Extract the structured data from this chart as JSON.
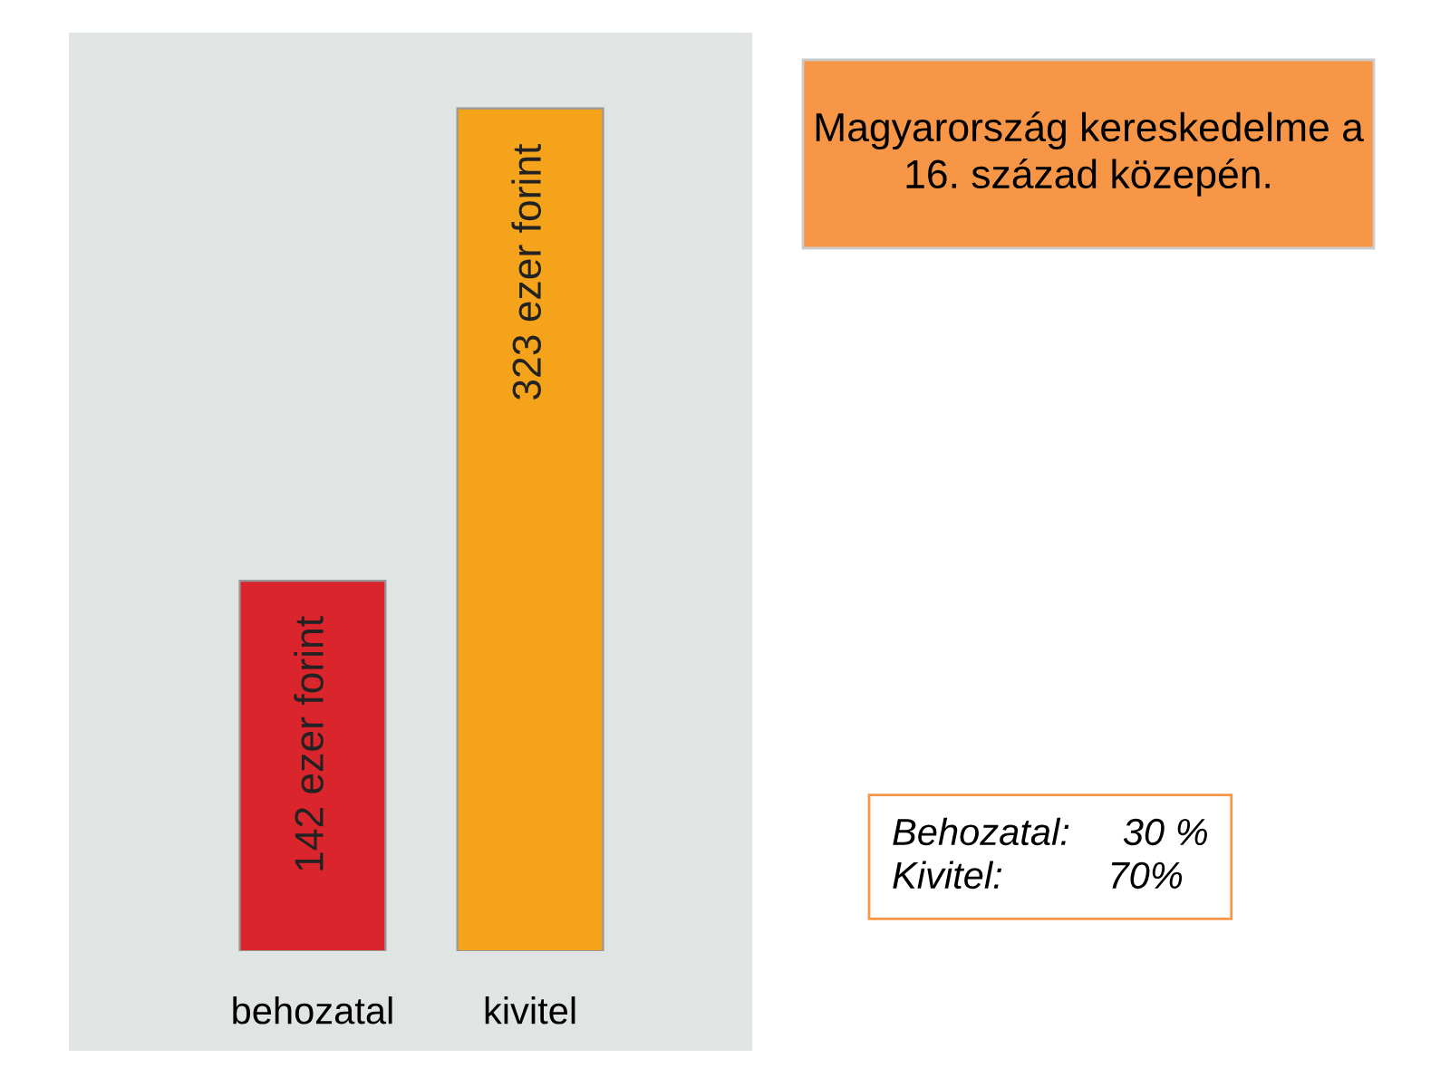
{
  "chart_data": {
    "type": "bar",
    "title": "Magyarország kereskedelme a 16. század közepén.",
    "categories": [
      "behozatal",
      "kivitel"
    ],
    "values": [
      142,
      323
    ],
    "value_labels": [
      "142 ezer forint",
      "323 ezer forint"
    ],
    "colors": [
      "#d9252b",
      "#f5a31b"
    ],
    "annotations": [
      "Behozatal:     30 %",
      "Kivitel:          70%"
    ],
    "grid": false,
    "legend": false
  }
}
